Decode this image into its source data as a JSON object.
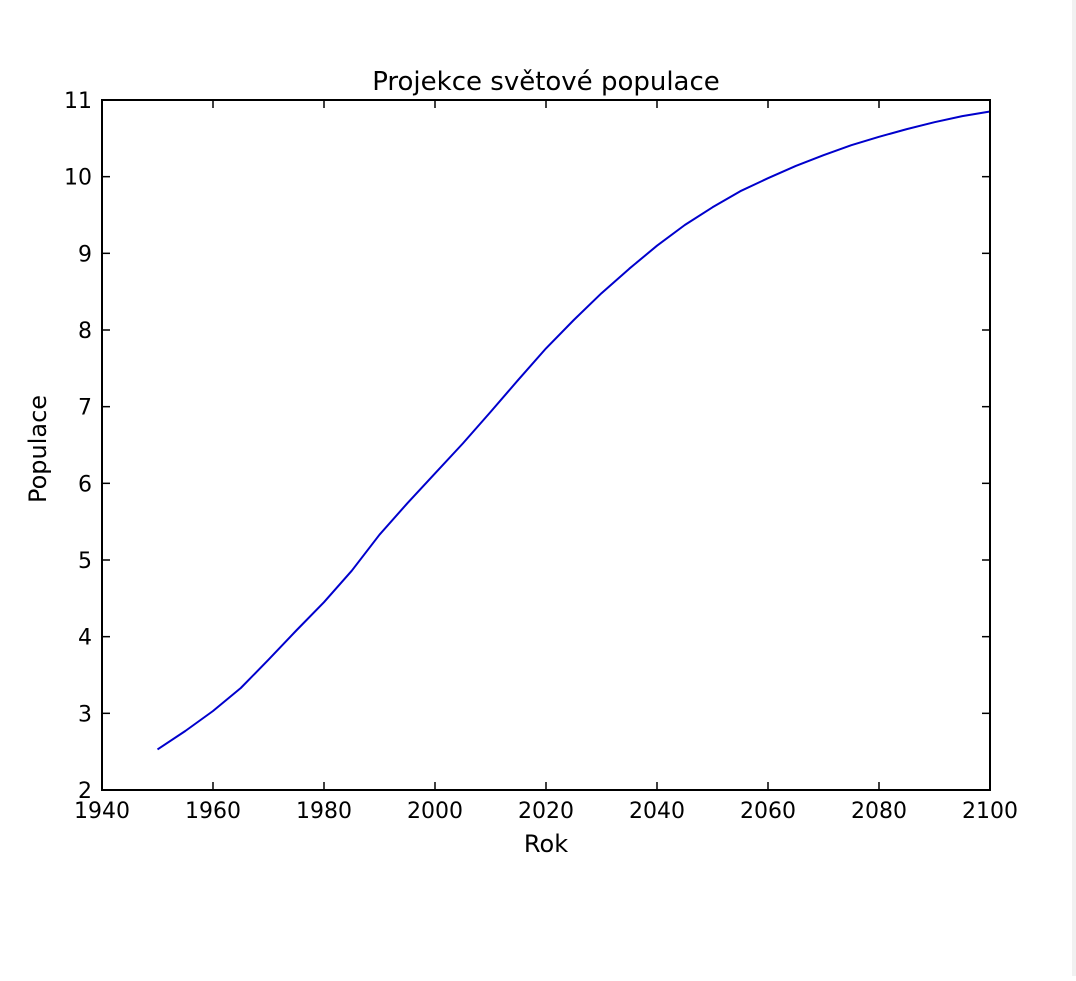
{
  "chart_data": {
    "type": "line",
    "title": "Projekce světové populace",
    "xlabel": "Rok",
    "ylabel": "Populace",
    "xlim": [
      1940,
      2100
    ],
    "ylim": [
      2,
      11
    ],
    "xticks": [
      1940,
      1960,
      1980,
      2000,
      2020,
      2040,
      2060,
      2080,
      2100
    ],
    "yticks": [
      2,
      3,
      4,
      5,
      6,
      7,
      8,
      9,
      10,
      11
    ],
    "grid": false,
    "series": [
      {
        "color": "#0000cc",
        "x": [
          1950,
          1955,
          1960,
          1965,
          1970,
          1975,
          1980,
          1985,
          1990,
          1995,
          2000,
          2005,
          2010,
          2015,
          2020,
          2025,
          2030,
          2035,
          2040,
          2045,
          2050,
          2055,
          2060,
          2065,
          2070,
          2075,
          2080,
          2085,
          2090,
          2095,
          2100
        ],
        "y": [
          2.53,
          2.77,
          3.03,
          3.33,
          3.7,
          4.08,
          4.45,
          4.86,
          5.33,
          5.74,
          6.13,
          6.52,
          6.93,
          7.35,
          7.76,
          8.13,
          8.48,
          8.8,
          9.1,
          9.37,
          9.6,
          9.81,
          9.98,
          10.14,
          10.28,
          10.41,
          10.52,
          10.62,
          10.71,
          10.79,
          10.85
        ]
      }
    ]
  }
}
